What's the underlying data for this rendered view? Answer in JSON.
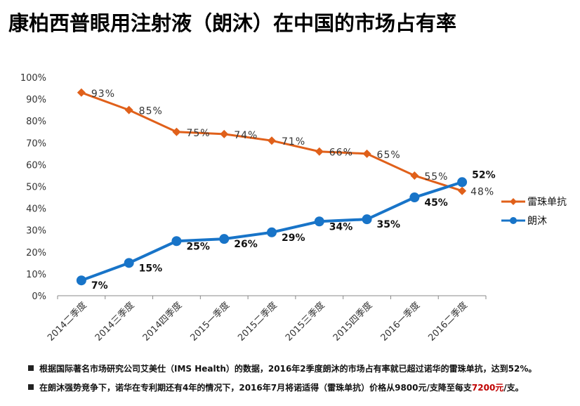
{
  "title": "康柏西普眼用注射液（朗沐）在中国的市场占有率",
  "chart_data": {
    "type": "line",
    "title": "康柏西普眼用注射液（朗沐）在中国的市场占有率",
    "categories": [
      "2014二季度",
      "2014三季度",
      "2014四季度",
      "2015一季度",
      "2015二季度",
      "2015三季度",
      "2015四季度",
      "2016一季度",
      "2016二季度"
    ],
    "ylim": [
      0,
      100
    ],
    "yticks": [
      "0%",
      "10%",
      "20%",
      "30%",
      "40%",
      "50%",
      "60%",
      "70%",
      "80%",
      "90%",
      "100%"
    ],
    "grid": false,
    "legend": "right",
    "series": [
      {
        "name": "雷珠单抗",
        "color": "#e0601a",
        "marker": "diamond",
        "values": [
          93,
          85,
          75,
          74,
          71,
          66,
          65,
          55,
          48
        ],
        "labels": [
          "93%",
          "85%",
          "75%",
          "74%",
          "71%",
          "66%",
          "65%",
          "55%",
          "48%"
        ]
      },
      {
        "name": "朗沐",
        "color": "#1874c8",
        "marker": "circle",
        "values": [
          7,
          15,
          25,
          26,
          29,
          34,
          35,
          45,
          52
        ],
        "labels": [
          "7%",
          "15%",
          "25%",
          "26%",
          "29%",
          "34%",
          "35%",
          "45%",
          "52%"
        ]
      }
    ]
  },
  "notes": [
    {
      "text": "根据国际著名市场研究公司艾美仕（IMS Health）的数据，2016年2季度朗沐的市场占有率就已超过诺华的雷珠单抗，达到52%。"
    },
    {
      "text_before": "在朗沐强势竞争下，诺华在专利期还有4年的情况下，2016年7月将诺适得（雷珠单抗）价格从9800元/支降至每支",
      "highlight": "7200元",
      "text_after": "/支。",
      "highlight_color": "#c00000"
    }
  ]
}
